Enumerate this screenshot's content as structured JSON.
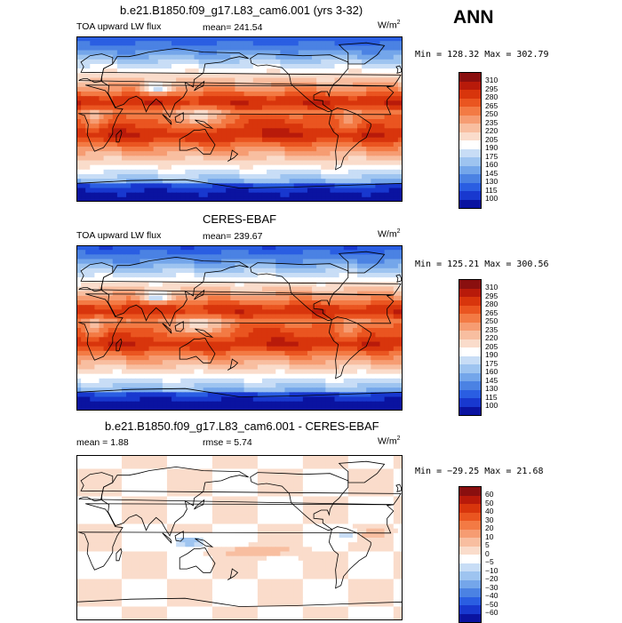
{
  "season": "ANN",
  "panels": [
    {
      "title": "b.e21.B1850.f09_g17.L83_cam6.001 (yrs 3-32)",
      "left_label": "TOA upward LW flux",
      "stats": "mean= 241.54",
      "units_base": "W/m",
      "units_exp": "2",
      "minmax": "Min = 128.32 Max = 302.79",
      "colorbar_labels": [
        "310",
        "295",
        "280",
        "265",
        "250",
        "235",
        "220",
        "205",
        "190",
        "175",
        "160",
        "145",
        "130",
        "115",
        "100"
      ],
      "colorbar_colors": [
        "#8a0f0f",
        "#b81a0a",
        "#d8350c",
        "#ea5520",
        "#f37a44",
        "#f69c72",
        "#f8bea0",
        "#fadccb",
        "#ffffff",
        "#c8ddf6",
        "#9ec4f0",
        "#74a6ea",
        "#4b82e3",
        "#2a5ee2",
        "#1838cf",
        "#0a13a0"
      ],
      "field": "lw"
    },
    {
      "title": "CERES-EBAF",
      "left_label": "TOA upward LW flux",
      "stats": "mean= 239.67",
      "units_base": "W/m",
      "units_exp": "2",
      "minmax": "Min = 125.21 Max = 300.56",
      "colorbar_labels": [
        "310",
        "295",
        "280",
        "265",
        "250",
        "235",
        "220",
        "205",
        "190",
        "175",
        "160",
        "145",
        "130",
        "115",
        "100"
      ],
      "colorbar_colors": [
        "#8a0f0f",
        "#b81a0a",
        "#d8350c",
        "#ea5520",
        "#f37a44",
        "#f69c72",
        "#f8bea0",
        "#fadccb",
        "#ffffff",
        "#c8ddf6",
        "#9ec4f0",
        "#74a6ea",
        "#4b82e3",
        "#2a5ee2",
        "#1838cf",
        "#0a13a0"
      ],
      "field": "lw"
    },
    {
      "title": "b.e21.B1850.f09_g17.L83_cam6.001 - CERES-EBAF",
      "left_label": "mean =   1.88",
      "stats": "rmse =   5.74",
      "units_base": "W/m",
      "units_exp": "2",
      "minmax": "Min = −29.25 Max =  21.68",
      "colorbar_labels": [
        "60",
        "50",
        "40",
        "30",
        "20",
        "10",
        "5",
        "0",
        "−5",
        "−10",
        "−20",
        "−30",
        "−40",
        "−50",
        "−60"
      ],
      "colorbar_colors": [
        "#8a0f0f",
        "#b81a0a",
        "#d8350c",
        "#ea5520",
        "#f37a44",
        "#f69c72",
        "#f8bea0",
        "#fadccb",
        "#ffffff",
        "#c8ddf6",
        "#9ec4f0",
        "#74a6ea",
        "#4b82e3",
        "#2a5ee2",
        "#1838cf",
        "#0a13a0"
      ],
      "field": "diff"
    }
  ]
}
